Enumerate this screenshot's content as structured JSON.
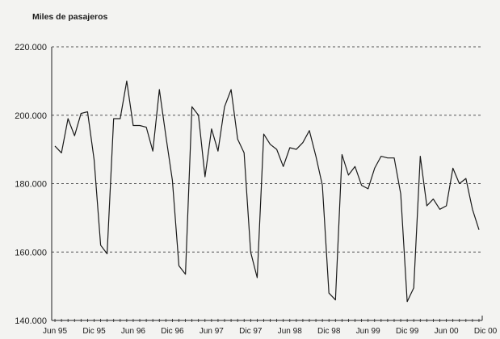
{
  "chart_data": {
    "type": "line",
    "ylabel": "Miles de pasajeros",
    "xlabel": "",
    "ylim": [
      140000,
      220000
    ],
    "yticks": [
      140000,
      160000,
      180000,
      200000,
      220000
    ],
    "ytick_labels": [
      "140.000",
      "160.000",
      "180.000",
      "200.000",
      "220.000"
    ],
    "grid": "horizontal dashed",
    "tick_labels": [
      {
        "label": "Jun 95",
        "index": 0
      },
      {
        "label": "Dic 95",
        "index": 6
      },
      {
        "label": "Jun 96",
        "index": 12
      },
      {
        "label": "Dic 96",
        "index": 18
      },
      {
        "label": "Jun 97",
        "index": 24
      },
      {
        "label": "Dic 97",
        "index": 30
      },
      {
        "label": "Jun 98",
        "index": 36
      },
      {
        "label": "Dic 98",
        "index": 42
      },
      {
        "label": "Jun 99",
        "index": 48
      },
      {
        "label": "Dic 99",
        "index": 54
      },
      {
        "label": "Jun 00",
        "index": 60
      },
      {
        "label": "Dic 00",
        "index": 66
      }
    ],
    "series": [
      {
        "color": "#1a1a1a",
        "values": [
          191000,
          189000,
          199000,
          194000,
          200500,
          201000,
          187000,
          162000,
          159500,
          199000,
          199000,
          210000,
          197000,
          197000,
          196500,
          189500,
          207500,
          194000,
          181000,
          156000,
          153500,
          202500,
          200000,
          182000,
          196000,
          189500,
          202500,
          207500,
          193000,
          189000,
          160000,
          152500,
          194500,
          191500,
          190000,
          185000,
          190500,
          190000,
          192000,
          195500,
          188000,
          179500,
          148000,
          146000,
          188500,
          182500,
          185000,
          179500,
          178500,
          184500,
          188000,
          187500,
          187500,
          177000,
          145500,
          149500,
          188000,
          173500,
          175500,
          172500,
          173500,
          184500,
          180000,
          181500,
          172500,
          166500
        ]
      }
    ]
  }
}
